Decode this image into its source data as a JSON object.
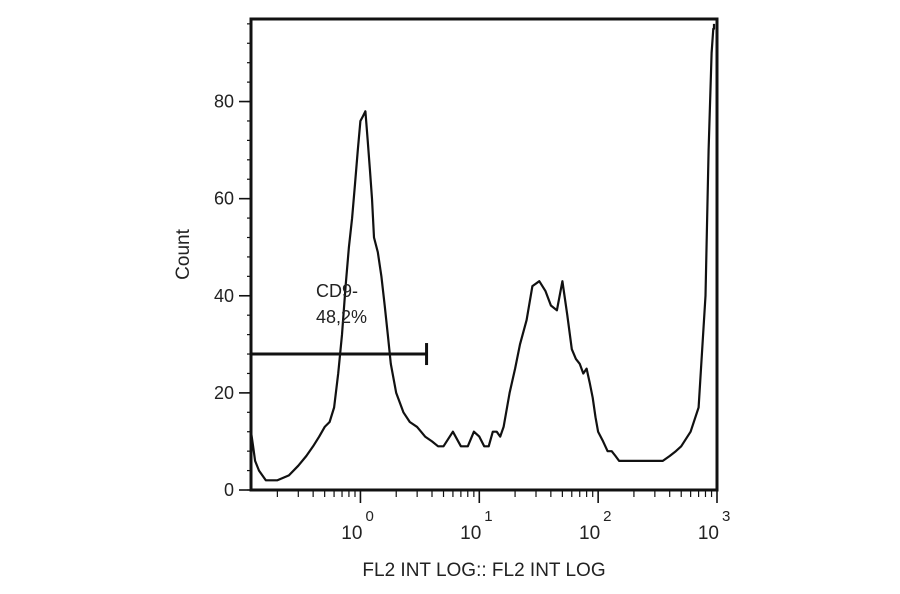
{
  "chart_data": {
    "type": "histogram",
    "title": "",
    "xlabel": "FL2 INT LOG:: FL2 INT LOG",
    "ylabel": "Count",
    "x_scale": "log",
    "xlim": [
      0.12,
      1000
    ],
    "ylim": [
      0,
      97
    ],
    "y_ticks": [
      0,
      20,
      40,
      60,
      80
    ],
    "x_ticks": [
      {
        "base": "10",
        "exp": "0",
        "value": 1
      },
      {
        "base": "10",
        "exp": "1",
        "value": 10
      },
      {
        "base": "10",
        "exp": "2",
        "value": 100
      },
      {
        "base": "10",
        "exp": "3",
        "value": 1000
      }
    ],
    "grid": false,
    "series": [
      {
        "x": [
          0.12,
          0.125,
          0.13,
          0.14,
          0.16,
          0.2,
          0.25,
          0.3,
          0.35,
          0.4,
          0.45,
          0.5,
          0.55,
          0.6,
          0.65,
          0.7,
          0.75,
          0.8,
          0.85,
          0.9,
          0.95,
          1.0,
          1.05,
          1.1,
          1.15,
          1.2,
          1.25,
          1.3,
          1.4,
          1.5,
          1.6,
          1.7,
          1.8,
          2.0,
          2.3,
          2.6,
          3.0,
          3.5,
          4.0,
          4.5,
          5.0,
          6.0,
          7.0,
          8.0,
          9.0,
          10.0,
          11.0,
          12.0,
          13.0,
          14.0,
          15.0,
          16.0,
          18.0,
          20.0,
          22.0,
          25.0,
          28.0,
          32.0,
          36.0,
          40.0,
          45.0,
          50.0,
          55.0,
          60.0,
          65.0,
          70.0,
          75.0,
          80.0,
          85.0,
          90.0,
          95.0,
          100.0,
          110.0,
          120.0,
          130.0,
          140.0,
          150.0,
          170.0,
          200.0,
          250.0,
          300.0,
          350.0,
          400.0,
          450.0,
          500.0,
          600.0,
          700.0,
          800.0,
          850.0,
          900.0,
          930.0,
          950.0,
          970.0,
          980.0,
          990.0,
          995.0,
          1000.0
        ],
        "y": [
          12,
          9,
          6,
          4,
          2,
          2,
          3,
          5,
          7,
          9,
          11,
          13,
          14,
          17,
          24,
          32,
          42,
          50,
          56,
          63,
          70,
          76,
          77,
          78,
          72,
          66,
          60,
          52,
          49,
          44,
          38,
          32,
          26,
          20,
          16,
          14,
          13,
          11,
          10,
          9,
          9,
          12,
          9,
          9,
          12,
          11,
          9,
          9,
          12,
          12,
          11,
          13,
          20,
          25,
          30,
          35,
          42,
          43,
          41,
          38,
          37,
          43,
          36,
          29,
          27,
          26,
          24,
          25,
          22,
          19,
          15,
          12,
          10,
          8,
          8,
          7,
          6,
          6,
          6,
          6,
          6,
          6,
          7,
          8,
          9,
          12,
          17,
          40,
          70,
          90,
          95,
          95,
          96,
          96,
          96,
          96,
          96
        ]
      }
    ],
    "gate": {
      "label_line1": "CD9-",
      "label_line2": "48,2%",
      "x_start": 0.12,
      "x_end": 3.6,
      "y": 28
    }
  }
}
